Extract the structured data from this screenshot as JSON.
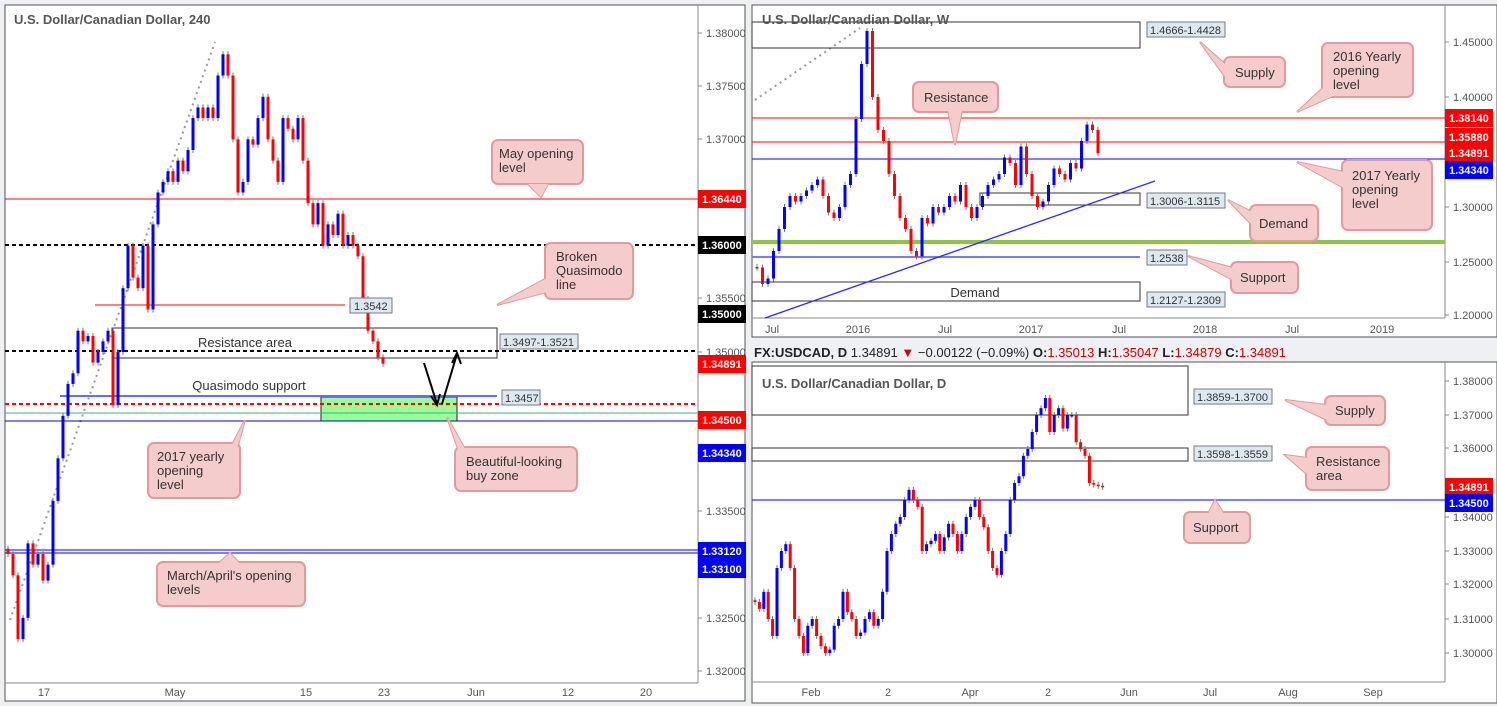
{
  "colors": {
    "up": "#0000ff",
    "down": "#ff0000",
    "callout_fill": "#f4cccc",
    "callout_stroke": "#e39a9a",
    "buy_zone": "#99ff99",
    "green_line": "#8dc63f"
  },
  "chart_data": [
    {
      "type": "candlestick",
      "title": "U.S. Dollar/Canadian Dollar, 240",
      "ylim": [
        1.3185,
        1.3815
      ],
      "y_ticks": [
        "1.38000",
        "1.37500",
        "1.37000",
        "1.35500",
        "1.35000",
        "1.33500",
        "1.32500",
        "1.32000"
      ],
      "x_ticks": [
        "17",
        "May",
        "15",
        "23",
        "Jun",
        "12",
        "20"
      ],
      "closes": [
        1.331,
        1.329,
        1.323,
        1.325,
        1.332,
        1.33,
        1.331,
        1.3285,
        1.33,
        1.336,
        1.34,
        1.344,
        1.347,
        1.348,
        1.352,
        1.351,
        1.3515,
        1.349,
        1.35,
        1.351,
        1.352,
        1.345,
        1.35,
        1.356,
        1.36,
        1.357,
        1.356,
        1.36,
        1.354,
        1.362,
        1.365,
        1.366,
        1.367,
        1.366,
        1.368,
        1.367,
        1.369,
        1.372,
        1.373,
        1.372,
        1.373,
        1.372,
        1.376,
        1.378,
        1.376,
        1.37,
        1.365,
        1.366,
        1.37,
        1.3695,
        1.372,
        1.374,
        1.37,
        1.368,
        1.366,
        1.372,
        1.371,
        1.37,
        1.372,
        1.368,
        1.364,
        1.362,
        1.364,
        1.36,
        1.362,
        1.361,
        1.363,
        1.36,
        1.361,
        1.36,
        1.359,
        1.355,
        1.352,
        1.351,
        1.3495,
        1.3489
      ],
      "price_tags": [
        {
          "text": "1.36440",
          "color": "#ff0000"
        },
        {
          "text": "1.36000",
          "color": "#000000"
        },
        {
          "text": "1.35000",
          "color": "#000000"
        },
        {
          "text": "1.34891",
          "color": "#ff0000"
        },
        {
          "text": "1.34500",
          "color": "#ff0000"
        },
        {
          "text": "1.34340",
          "color": "#0000ff"
        },
        {
          "text": "1.33120",
          "color": "#0000ff"
        },
        {
          "text": "1.33100",
          "color": "#0000ff"
        }
      ],
      "levels": {
        "may_open": 1.3644,
        "round_1_36": 1.36,
        "broken_qm": 1.3542,
        "round_1_35": 1.35,
        "qm_support": 1.3457,
        "yearly_2017_dash": 1.345,
        "yearly_2017": 1.3434,
        "march_open": 1.3312,
        "april_open": 1.331
      },
      "zones": {
        "resistance_area": [
          1.3497,
          1.3521
        ],
        "buy_zone": [
          1.3434,
          1.3457
        ]
      },
      "annotations": {
        "resistance_area": "Resistance area",
        "resistance_range": "1.3497-1.3521",
        "broken_qm_value": "1.3542",
        "qm_support_label": "Quasimodo support",
        "qm_support_value": "1.3457",
        "may": [
          "May opening",
          "level"
        ],
        "broken_qm": [
          "Broken",
          "Quasimodo",
          "line"
        ],
        "yearly": [
          "2017 yearly",
          "opening",
          "level"
        ],
        "buy": [
          "Beautiful-looking",
          "buy zone"
        ],
        "march": [
          "March/April's opening",
          "levels"
        ]
      }
    },
    {
      "type": "candlestick",
      "title": "U.S. Dollar/Canadian Dollar, W",
      "ylim": [
        1.1965,
        1.4665
      ],
      "y_ticks": [
        "1.45000",
        "1.40000",
        "1.30000",
        "1.25000",
        "1.20000"
      ],
      "x_ticks": [
        "Jul",
        "2016",
        "Jul",
        "2017",
        "Jul",
        "2018",
        "Jul",
        "2019"
      ],
      "closes": [
        1.245,
        1.23,
        1.235,
        1.26,
        1.28,
        1.3,
        1.31,
        1.305,
        1.31,
        1.315,
        1.32,
        1.325,
        1.31,
        1.295,
        1.29,
        1.3,
        1.32,
        1.33,
        1.38,
        1.43,
        1.46,
        1.4,
        1.37,
        1.36,
        1.33,
        1.31,
        1.29,
        1.28,
        1.26,
        1.255,
        1.29,
        1.285,
        1.3,
        1.295,
        1.3,
        1.31,
        1.305,
        1.32,
        1.3,
        1.29,
        1.3,
        1.31,
        1.32,
        1.325,
        1.33,
        1.345,
        1.34,
        1.32,
        1.355,
        1.33,
        1.31,
        1.3,
        1.305,
        1.32,
        1.335,
        1.33,
        1.325,
        1.34,
        1.335,
        1.36,
        1.375,
        1.37,
        1.3489
      ],
      "price_tags": [
        {
          "text": "1.38140",
          "color": "#ff0000"
        },
        {
          "text": "1.35880",
          "color": "#ff0000"
        },
        {
          "text": "1.34891",
          "color": "#ff0000"
        },
        {
          "text": "1.34340",
          "color": "#0000ff"
        }
      ],
      "levels": {
        "yearly_2016": 1.3814,
        "resistance": 1.3588,
        "yearly_2017": 1.3434,
        "green_level": 1.2675,
        "support": 1.2538
      },
      "zones": {
        "supply": [
          1.4428,
          1.4666
        ],
        "demand_upper": [
          1.3006,
          1.3115
        ],
        "demand_lower": [
          1.2127,
          1.2309
        ]
      },
      "annotations": {
        "supply_range": "1.4666-1.4428",
        "demand_range": "1.3006-1.3115",
        "support_value": "1.2538",
        "demand_lower_range": "1.2127-1.2309",
        "demand_lower_label": "Demand",
        "resistance": [
          "Resistance"
        ],
        "supply": [
          "Supply"
        ],
        "yearly_2016": [
          "2016 Yearly",
          "opening",
          "level"
        ],
        "yearly_2017": [
          "2017 Yearly",
          "opening",
          "level"
        ],
        "demand": [
          "Demand"
        ],
        "support": [
          "Support"
        ]
      }
    },
    {
      "type": "candlestick",
      "title": "U.S. Dollar/Canadian Dollar, D",
      "ylim": [
        1.2915,
        1.3855
      ],
      "y_ticks": [
        "1.38000",
        "1.37000",
        "1.36000",
        "1.34000",
        "1.33000",
        "1.32000",
        "1.31000",
        "1.30000"
      ],
      "x_ticks": [
        "Feb",
        "2",
        "Apr",
        "2",
        "Jun",
        "Jul",
        "Aug",
        "Sep"
      ],
      "closes": [
        1.315,
        1.313,
        1.318,
        1.31,
        1.305,
        1.325,
        1.33,
        1.332,
        1.325,
        1.31,
        1.305,
        1.3,
        1.308,
        1.31,
        1.305,
        1.302,
        1.3,
        1.301,
        1.308,
        1.31,
        1.318,
        1.312,
        1.31,
        1.305,
        1.306,
        1.31,
        1.312,
        1.308,
        1.31,
        1.318,
        1.33,
        1.335,
        1.338,
        1.34,
        1.345,
        1.348,
        1.345,
        1.343,
        1.33,
        1.332,
        1.333,
        1.335,
        1.33,
        1.334,
        1.338,
        1.335,
        1.33,
        1.335,
        1.34,
        1.343,
        1.345,
        1.34,
        1.337,
        1.33,
        1.325,
        1.323,
        1.33,
        1.335,
        1.345,
        1.35,
        1.352,
        1.358,
        1.36,
        1.365,
        1.37,
        1.372,
        1.375,
        1.365,
        1.37,
        1.372,
        1.366,
        1.37,
        1.37,
        1.362,
        1.36,
        1.358,
        1.35,
        1.3495,
        1.3492,
        1.3489
      ],
      "price_tags": [
        {
          "text": "1.34891",
          "color": "#ff0000"
        },
        {
          "text": "1.34500",
          "color": "#0000ff"
        }
      ],
      "levels": {
        "support": 1.345
      },
      "zones": {
        "supply": [
          1.37,
          1.3859
        ],
        "resistance_area": [
          1.3559,
          1.3598
        ]
      },
      "annotations": {
        "supply_range": "1.3859-1.3700",
        "resistance_range": "1.3598-1.3559",
        "supply": [
          "Supply"
        ],
        "resistance": [
          "Resistance",
          "area"
        ],
        "support": [
          "Support"
        ]
      }
    }
  ],
  "daily_header": {
    "symbol": "FX:USDCAD, D",
    "last": "1.34891",
    "arrow": "▼",
    "change": "−0.00122 (−0.09%)",
    "o_label": "O:",
    "o": "1.35013",
    "h_label": "H:",
    "h": "1.35047",
    "l_label": "L:",
    "l": "1.34879",
    "c_label": "C:",
    "c": "1.34891"
  }
}
